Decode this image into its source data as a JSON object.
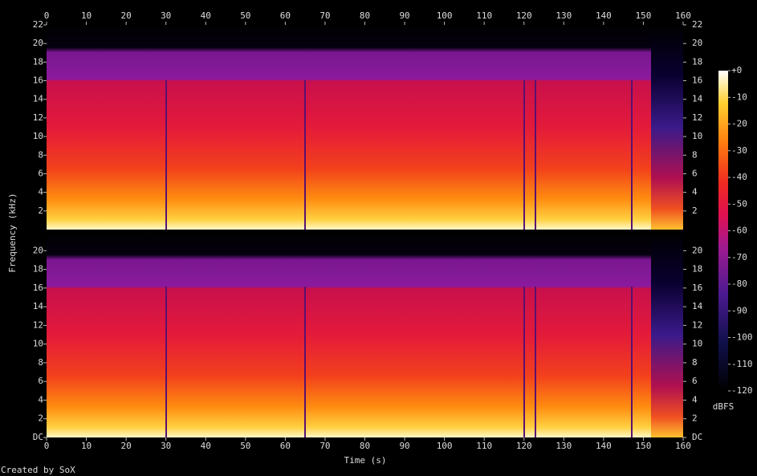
{
  "chart_data": {
    "type": "spectrogram",
    "xlabel": "Time (s)",
    "ylabel": "Frequency (kHz)",
    "xlim": [
      0,
      160
    ],
    "xticks": [
      0,
      10,
      20,
      30,
      40,
      50,
      60,
      70,
      80,
      90,
      100,
      110,
      120,
      130,
      140,
      150,
      160
    ],
    "panels": [
      {
        "ylim": [
          0,
          22
        ],
        "yticks": [
          2,
          4,
          6,
          8,
          10,
          12,
          14,
          16,
          18,
          20,
          22
        ]
      },
      {
        "ylim": [
          0,
          22
        ],
        "yticks": [
          {
            "value": 0,
            "label": "DC"
          },
          2,
          4,
          6,
          8,
          10,
          12,
          14,
          16,
          18,
          20
        ]
      }
    ],
    "colorbar": {
      "label": "dBFS",
      "lim": [
        -120,
        0
      ],
      "ticks": [
        {
          "value": 0,
          "label": "+0"
        },
        -10,
        -20,
        -30,
        -40,
        -50,
        -60,
        -70,
        -80,
        -90,
        -100,
        -110,
        -120
      ]
    },
    "credit": "Created by SoX"
  }
}
